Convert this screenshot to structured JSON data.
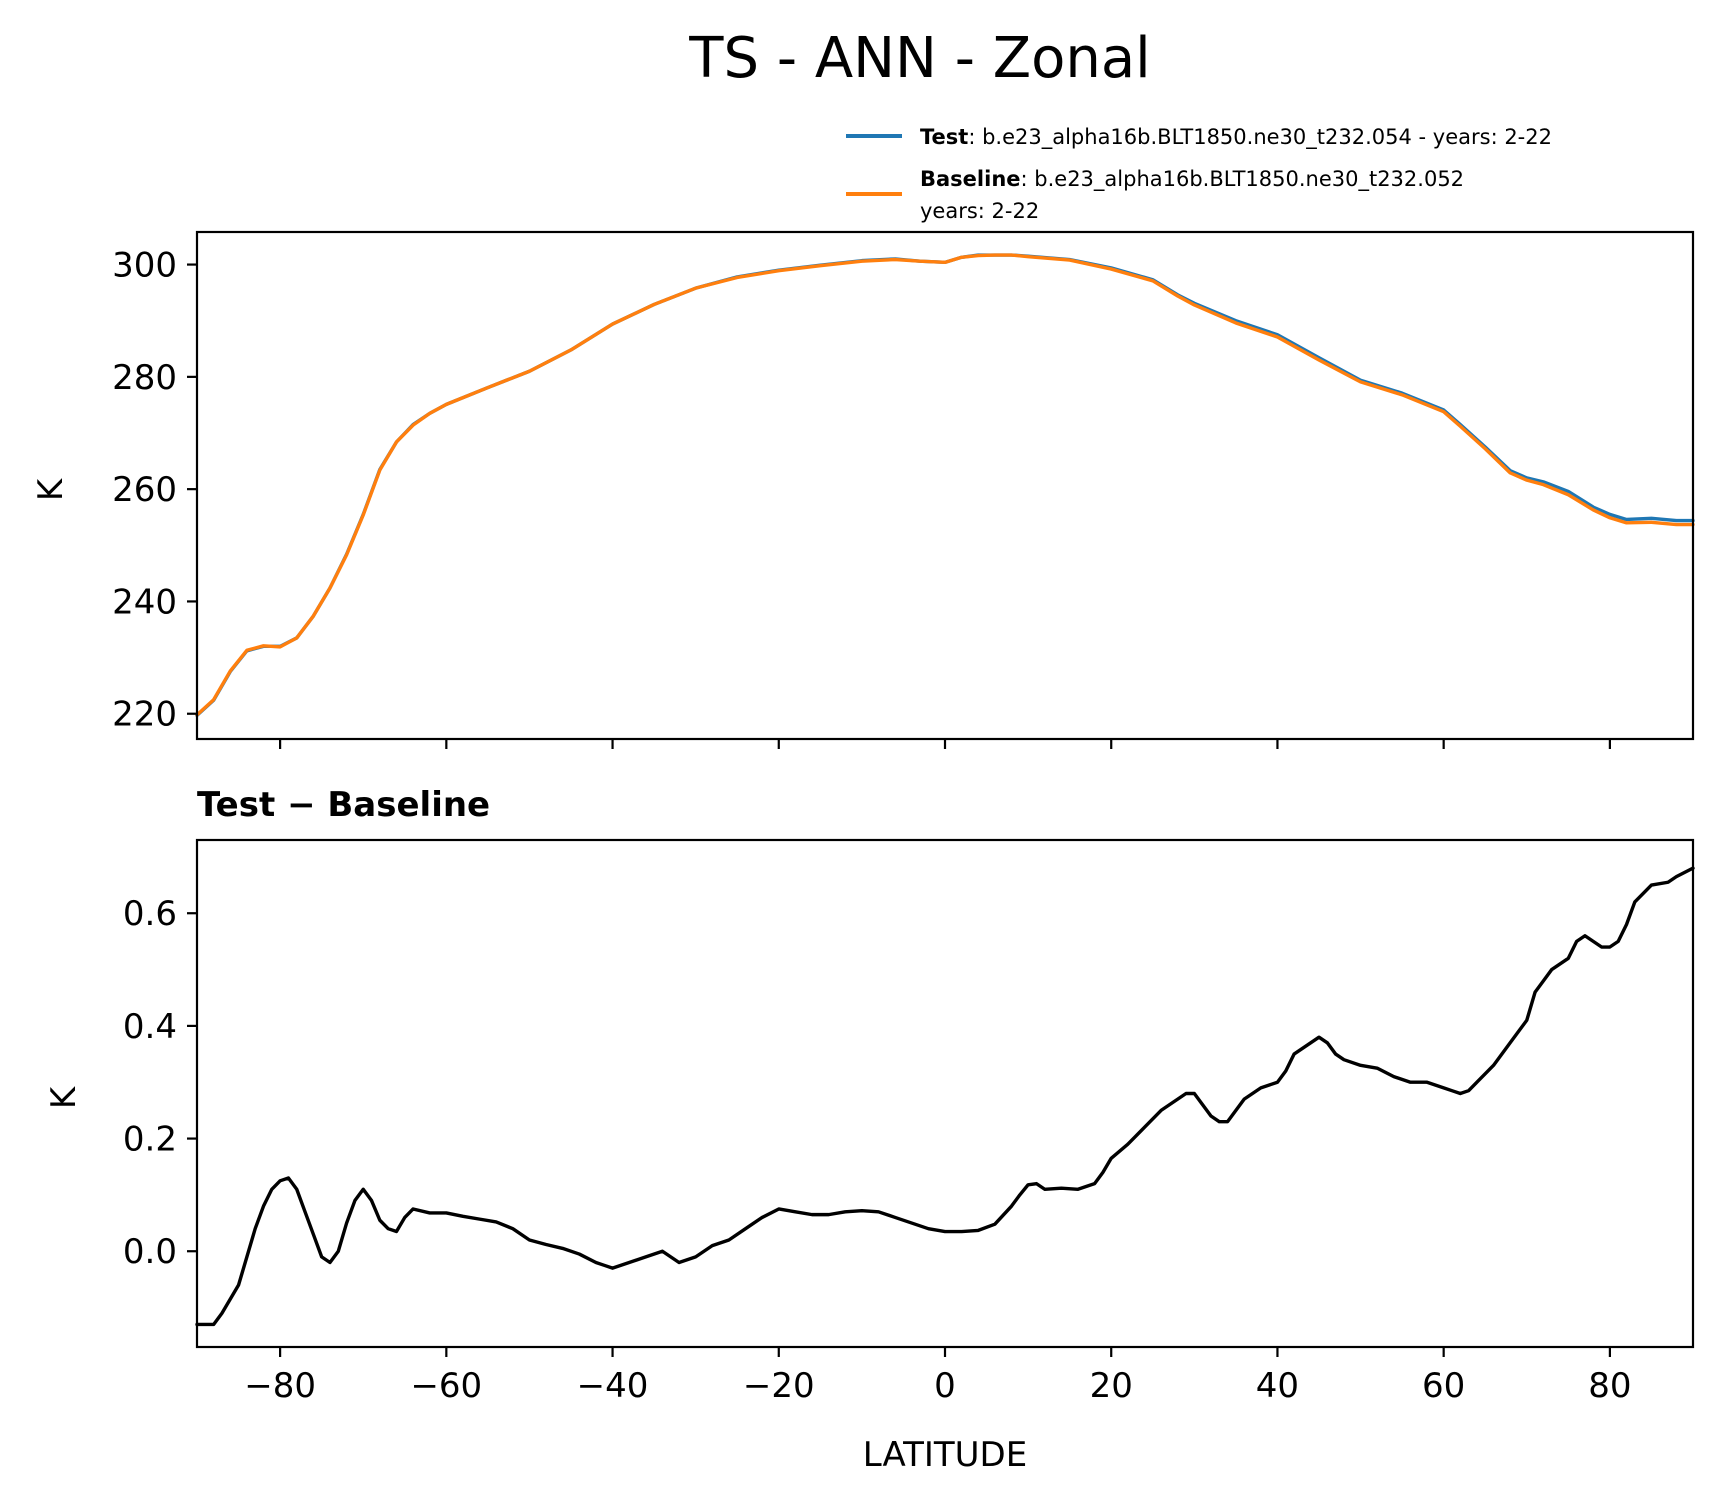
{
  "chart_data": [
    {
      "type": "line",
      "title": "TS - ANN - Zonal",
      "xlabel": "",
      "ylabel": "K",
      "xlim": [
        -90,
        90
      ],
      "ylim": [
        215.5,
        305.8
      ],
      "yticks": [
        220,
        240,
        260,
        280,
        300
      ],
      "xticks": [
        -80,
        -60,
        -40,
        -20,
        0,
        20,
        40,
        60,
        80
      ],
      "legend_position": "top-right",
      "legend": [
        {
          "name_bold": "Test",
          "rest": ": b.e23_alpha16b.BLT1850.ne30_t232.054 - years: 2-22",
          "rest2": "",
          "color": "#1f77b4"
        },
        {
          "name_bold": "Baseline",
          "rest": ": b.e23_alpha16b.BLT1850.ne30_t232.052",
          "rest2": "years: 2-22",
          "color": "#ff7f0e"
        }
      ],
      "x": [
        -90,
        -88,
        -86,
        -84,
        -82,
        -80,
        -78,
        -76,
        -74,
        -72,
        -70,
        -68,
        -66,
        -64,
        -62,
        -60,
        -55,
        -50,
        -45,
        -40,
        -35,
        -30,
        -25,
        -20,
        -15,
        -10,
        -6,
        -3,
        0,
        2,
        4,
        6,
        8,
        10,
        15,
        20,
        25,
        28,
        30,
        35,
        40,
        45,
        50,
        55,
        60,
        62,
        65,
        68,
        70,
        72,
        75,
        78,
        80,
        82,
        85,
        88,
        90
      ],
      "series": [
        {
          "name": "Test",
          "color": "#1f77b4",
          "values": [
            219.7,
            222.4,
            227.5,
            231.2,
            232.0,
            232.0,
            233.5,
            237.4,
            242.4,
            248.4,
            255.5,
            263.5,
            268.4,
            271.5,
            273.5,
            275.1,
            278.1,
            281.0,
            284.8,
            289.4,
            292.9,
            295.8,
            297.8,
            299.0,
            299.9,
            300.7,
            301.0,
            300.6,
            300.4,
            301.3,
            301.7,
            301.7,
            301.7,
            301.5,
            300.9,
            299.4,
            297.3,
            294.6,
            293.1,
            290.0,
            287.5,
            283.4,
            279.4,
            277.1,
            274.1,
            271.5,
            267.5,
            263.3,
            262.0,
            261.3,
            259.6,
            256.8,
            255.5,
            254.6,
            254.8,
            254.4,
            254.4
          ]
        },
        {
          "name": "Baseline",
          "color": "#ff7f0e",
          "values": [
            219.8,
            222.5,
            227.6,
            231.3,
            232.1,
            231.9,
            233.5,
            237.4,
            242.4,
            248.3,
            255.4,
            263.4,
            268.4,
            271.4,
            273.5,
            275.1,
            278.1,
            281.0,
            284.8,
            289.4,
            292.9,
            295.8,
            297.7,
            298.9,
            299.8,
            300.6,
            300.9,
            300.6,
            300.4,
            301.3,
            301.6,
            301.7,
            301.7,
            301.4,
            300.8,
            299.2,
            297.1,
            294.4,
            292.8,
            289.6,
            287.1,
            283.0,
            279.1,
            276.8,
            273.8,
            271.2,
            267.2,
            262.9,
            261.6,
            260.8,
            259.0,
            256.3,
            254.9,
            254.0,
            254.1,
            253.7,
            253.7
          ]
        }
      ]
    },
    {
      "type": "line",
      "title": "Test − Baseline",
      "xlabel": "LATITUDE",
      "ylabel": "K",
      "xlim": [
        -90,
        90
      ],
      "ylim": [
        -0.17,
        0.73
      ],
      "yticks": [
        0.0,
        0.2,
        0.4,
        0.6
      ],
      "ytick_labels": [
        "0.0",
        "0.2",
        "0.4",
        "0.6"
      ],
      "xticks": [
        -80,
        -60,
        -40,
        -20,
        0,
        20,
        40,
        60,
        80
      ],
      "xtick_labels": [
        "−80",
        "−60",
        "−40",
        "−20",
        "0",
        "20",
        "40",
        "60",
        "80"
      ],
      "x": [
        -90,
        -88,
        -87,
        -85,
        -84,
        -83,
        -82,
        -81,
        -80,
        -79,
        -78,
        -77,
        -76,
        -75,
        -74,
        -73,
        -72,
        -71,
        -70,
        -69,
        -68,
        -67,
        -66,
        -65,
        -64,
        -62,
        -60,
        -58,
        -56,
        -54,
        -52,
        -50,
        -48,
        -46,
        -44,
        -42,
        -41,
        -40,
        -38,
        -36,
        -34,
        -33,
        -32,
        -30,
        -28,
        -26,
        -24,
        -22,
        -20,
        -18,
        -16,
        -14,
        -12,
        -10,
        -8,
        -6,
        -4,
        -2,
        0,
        1,
        2,
        4,
        6,
        8,
        9,
        10,
        11,
        12,
        14,
        16,
        18,
        19,
        20,
        22,
        24,
        26,
        27,
        28,
        29,
        30,
        31,
        32,
        33,
        34,
        35,
        36,
        38,
        40,
        41,
        42,
        44,
        45,
        46,
        47,
        48,
        50,
        52,
        54,
        56,
        58,
        60,
        61,
        62,
        63,
        64,
        66,
        68,
        69,
        70,
        71,
        72,
        73,
        74,
        75,
        76,
        77,
        78,
        79,
        80,
        81,
        82,
        83,
        85,
        87,
        88,
        90
      ],
      "series": [
        {
          "name": "",
          "color": "#000000",
          "values": [
            -0.13,
            -0.13,
            -0.11,
            -0.06,
            -0.01,
            0.04,
            0.08,
            0.11,
            0.125,
            0.13,
            0.11,
            0.07,
            0.03,
            -0.01,
            -0.02,
            0.0,
            0.05,
            0.09,
            0.11,
            0.09,
            0.055,
            0.04,
            0.035,
            0.06,
            0.075,
            0.068,
            0.068,
            0.062,
            0.057,
            0.052,
            0.04,
            0.02,
            0.012,
            0.005,
            -0.005,
            -0.02,
            -0.025,
            -0.03,
            -0.02,
            -0.01,
            0.0,
            -0.01,
            -0.02,
            -0.01,
            0.01,
            0.02,
            0.04,
            0.06,
            0.075,
            0.07,
            0.065,
            0.065,
            0.07,
            0.072,
            0.07,
            0.06,
            0.05,
            0.04,
            0.035,
            0.035,
            0.035,
            0.037,
            0.048,
            0.08,
            0.1,
            0.118,
            0.12,
            0.11,
            0.112,
            0.11,
            0.12,
            0.14,
            0.165,
            0.19,
            0.22,
            0.25,
            0.26,
            0.27,
            0.28,
            0.28,
            0.26,
            0.24,
            0.23,
            0.23,
            0.25,
            0.27,
            0.29,
            0.3,
            0.32,
            0.35,
            0.37,
            0.38,
            0.37,
            0.35,
            0.34,
            0.33,
            0.325,
            0.31,
            0.3,
            0.3,
            0.29,
            0.285,
            0.28,
            0.285,
            0.3,
            0.33,
            0.37,
            0.39,
            0.41,
            0.46,
            0.48,
            0.5,
            0.51,
            0.52,
            0.55,
            0.56,
            0.55,
            0.54,
            0.54,
            0.55,
            0.58,
            0.62,
            0.65,
            0.655,
            0.665,
            0.68
          ]
        }
      ]
    }
  ]
}
